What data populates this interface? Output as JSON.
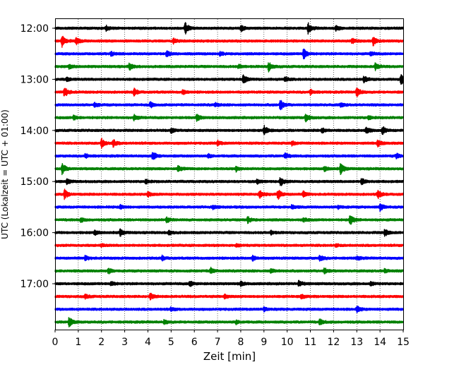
{
  "chart_data": {
    "type": "line",
    "title": "",
    "xlabel": "Zeit  [min]",
    "ylabel": "UTC (Lokalzeit = UTC + 01:00)",
    "xlim": [
      0,
      15
    ],
    "x_ticks": [
      "0",
      "1",
      "2",
      "3",
      "4",
      "5",
      "6",
      "7",
      "8",
      "9",
      "10",
      "11",
      "12",
      "13",
      "14",
      "15"
    ],
    "y_ticks": [
      "12:00",
      "13:00",
      "14:00",
      "15:00",
      "16:00",
      "17:00"
    ],
    "grid": "vertical-dotted",
    "trace_interval_minutes": 15,
    "colors": [
      "#000000",
      "#ff0000",
      "#0000ff",
      "#008000"
    ],
    "series": [
      {
        "start": "12:00",
        "color": "#000000",
        "events": [
          [
            5.6,
            1.0
          ],
          [
            10.9,
            0.9
          ],
          [
            8.0,
            0.5
          ],
          [
            2.2,
            0.45
          ],
          [
            12.1,
            0.4
          ]
        ]
      },
      {
        "start": "12:15",
        "color": "#ff0000",
        "events": [
          [
            0.3,
            1.0
          ],
          [
            13.7,
            0.8
          ],
          [
            0.9,
            0.6
          ],
          [
            5.1,
            0.4
          ],
          [
            12.8,
            0.45
          ]
        ]
      },
      {
        "start": "12:30",
        "color": "#0000ff",
        "events": [
          [
            10.7,
            1.0
          ],
          [
            4.8,
            0.5
          ],
          [
            2.4,
            0.35
          ],
          [
            7.1,
            0.3
          ],
          [
            13.6,
            0.35
          ]
        ]
      },
      {
        "start": "12:45",
        "color": "#008000",
        "events": [
          [
            9.2,
            0.8
          ],
          [
            3.2,
            0.6
          ],
          [
            13.8,
            0.6
          ],
          [
            0.6,
            0.35
          ],
          [
            7.9,
            0.3
          ]
        ]
      },
      {
        "start": "13:00",
        "color": "#000000",
        "events": [
          [
            8.1,
            0.8
          ],
          [
            14.9,
            0.9
          ],
          [
            13.3,
            0.5
          ],
          [
            9.9,
            0.4
          ],
          [
            0.5,
            0.3
          ]
        ]
      },
      {
        "start": "13:15",
        "color": "#ff0000",
        "events": [
          [
            0.4,
            0.9
          ],
          [
            13.0,
            0.9
          ],
          [
            3.4,
            0.6
          ],
          [
            11.0,
            0.4
          ],
          [
            5.5,
            0.35
          ]
        ]
      },
      {
        "start": "13:30",
        "color": "#0000ff",
        "events": [
          [
            9.7,
            1.0
          ],
          [
            4.1,
            0.5
          ],
          [
            1.7,
            0.4
          ],
          [
            6.9,
            0.3
          ],
          [
            12.3,
            0.35
          ]
        ]
      },
      {
        "start": "13:45",
        "color": "#008000",
        "events": [
          [
            6.1,
            0.6
          ],
          [
            10.8,
            0.7
          ],
          [
            3.4,
            0.5
          ],
          [
            0.8,
            0.35
          ],
          [
            13.5,
            0.3
          ]
        ]
      },
      {
        "start": "14:00",
        "color": "#000000",
        "events": [
          [
            9.0,
            0.8
          ],
          [
            14.1,
            0.7
          ],
          [
            13.4,
            0.6
          ],
          [
            5.0,
            0.5
          ],
          [
            11.5,
            0.4
          ]
        ]
      },
      {
        "start": "14:15",
        "color": "#ff0000",
        "events": [
          [
            2.0,
            0.8
          ],
          [
            2.5,
            0.6
          ],
          [
            13.9,
            0.6
          ],
          [
            7.0,
            0.4
          ],
          [
            10.2,
            0.35
          ]
        ]
      },
      {
        "start": "14:30",
        "color": "#0000ff",
        "events": [
          [
            4.2,
            0.8
          ],
          [
            9.9,
            0.5
          ],
          [
            14.7,
            0.4
          ],
          [
            1.3,
            0.3
          ],
          [
            6.6,
            0.3
          ]
        ]
      },
      {
        "start": "14:45",
        "color": "#008000",
        "events": [
          [
            0.3,
            1.0
          ],
          [
            12.3,
            1.0
          ],
          [
            5.3,
            0.5
          ],
          [
            7.8,
            0.4
          ],
          [
            11.6,
            0.4
          ]
        ]
      },
      {
        "start": "15:00",
        "color": "#000000",
        "events": [
          [
            9.7,
            0.8
          ],
          [
            13.2,
            0.6
          ],
          [
            0.5,
            0.4
          ],
          [
            3.9,
            0.35
          ],
          [
            8.7,
            0.35
          ]
        ]
      },
      {
        "start": "15:15",
        "color": "#ff0000",
        "events": [
          [
            0.4,
            0.8
          ],
          [
            9.6,
            0.9
          ],
          [
            8.8,
            0.7
          ],
          [
            13.9,
            0.7
          ],
          [
            10.7,
            0.5
          ],
          [
            4.0,
            0.4
          ]
        ]
      },
      {
        "start": "15:30",
        "color": "#0000ff",
        "events": [
          [
            14.0,
            0.6
          ],
          [
            6.8,
            0.4
          ],
          [
            2.8,
            0.35
          ],
          [
            10.2,
            0.35
          ],
          [
            12.2,
            0.3
          ]
        ]
      },
      {
        "start": "15:45",
        "color": "#008000",
        "events": [
          [
            12.7,
            1.0
          ],
          [
            8.3,
            0.5
          ],
          [
            4.8,
            0.4
          ],
          [
            1.1,
            0.35
          ],
          [
            10.7,
            0.35
          ]
        ]
      },
      {
        "start": "16:00",
        "color": "#000000",
        "events": [
          [
            2.8,
            0.6
          ],
          [
            14.2,
            0.6
          ],
          [
            1.7,
            0.4
          ],
          [
            4.9,
            0.4
          ],
          [
            9.3,
            0.3
          ]
        ]
      },
      {
        "start": "16:15",
        "color": "#ff0000",
        "events": [
          [
            7.8,
            0.2
          ],
          [
            2.0,
            0.2
          ],
          [
            12.1,
            0.2
          ]
        ]
      },
      {
        "start": "16:30",
        "color": "#0000ff",
        "events": [
          [
            11.4,
            0.5
          ],
          [
            8.5,
            0.45
          ],
          [
            1.3,
            0.4
          ],
          [
            4.6,
            0.4
          ],
          [
            13.0,
            0.3
          ]
        ]
      },
      {
        "start": "16:45",
        "color": "#008000",
        "events": [
          [
            6.7,
            0.5
          ],
          [
            2.3,
            0.45
          ],
          [
            11.6,
            0.5
          ],
          [
            9.3,
            0.35
          ],
          [
            14.2,
            0.3
          ]
        ]
      },
      {
        "start": "17:00",
        "color": "#000000",
        "events": [
          [
            5.8,
            0.5
          ],
          [
            10.5,
            0.5
          ],
          [
            2.4,
            0.4
          ],
          [
            8.0,
            0.35
          ],
          [
            13.6,
            0.3
          ]
        ]
      },
      {
        "start": "17:15",
        "color": "#ff0000",
        "events": [
          [
            4.1,
            0.5
          ],
          [
            1.3,
            0.35
          ],
          [
            7.3,
            0.3
          ],
          [
            10.6,
            0.35
          ]
        ]
      },
      {
        "start": "17:30",
        "color": "#0000ff",
        "events": [
          [
            13.0,
            0.5
          ],
          [
            9.0,
            0.3
          ],
          [
            5.0,
            0.3
          ]
        ]
      },
      {
        "start": "17:45",
        "color": "#008000",
        "events": [
          [
            0.6,
            0.8
          ],
          [
            11.4,
            0.5
          ],
          [
            4.7,
            0.35
          ],
          [
            7.8,
            0.3
          ]
        ]
      }
    ]
  }
}
